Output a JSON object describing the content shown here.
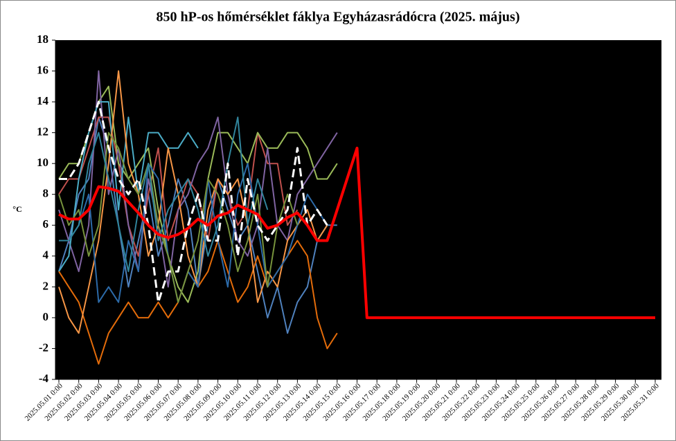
{
  "chart_data": {
    "type": "line",
    "title": "850 hP-os hőmérséklet fáklya Egyházasrádócra (2025. május)",
    "y_label": "°C",
    "categories": [
      "2025.05.01 0:00",
      null,
      "2025.05.02 0:00",
      null,
      "2025.05.03 0:00",
      null,
      "2025.05.04 0:00",
      null,
      "2025.05.05 0:00",
      null,
      "2025.05.06 0:00",
      null,
      "2025.05.07 0:00",
      null,
      "2025.05.08 0:00",
      null,
      "2025.05.09 0:00",
      null,
      "2025.05.10 0:00",
      null,
      "2025.05.11 0:00",
      null,
      "2025.05.12 0:00",
      null,
      "2025.05.13 0:00",
      null,
      "2025.05.14 0:00",
      null,
      "2025.05.15 0:00",
      null,
      "2025.05.16 0:00",
      null,
      "2025.05.17 0:00",
      null,
      "2025.05.18 0:00",
      null,
      "2025.05.19 0:00",
      null,
      "2025.05.20 0:00",
      null,
      "2025.05.21 0:00",
      null,
      "2025.05.22 0:00",
      null,
      "2025.05.23 0:00",
      null,
      "2025.05.24 0:00",
      null,
      "2025.05.25 0:00",
      null,
      "2025.05.26 0:00",
      null,
      "2025.05.27 0:00",
      null,
      "2025.05.28 0:00",
      null,
      "2025.05.29 0:00",
      null,
      "2025.05.30 0:00",
      null,
      "2025.05.31 0:00"
    ],
    "ylim": [
      -4,
      18
    ],
    "yticks": [
      -4,
      -2,
      0,
      2,
      4,
      6,
      8,
      10,
      12,
      14,
      16,
      18
    ],
    "background": "#000000",
    "series": [
      {
        "color": "#4f81bd",
        "width": 2,
        "values": [
          3,
          5,
          8,
          9,
          13,
          11,
          6,
          2,
          5,
          8,
          4,
          6,
          9,
          7,
          2,
          6,
          9,
          7,
          5,
          6,
          3,
          0,
          2,
          -1,
          1,
          2,
          5,
          6,
          6,
          null,
          null,
          null,
          null,
          null,
          null,
          null,
          null,
          null,
          null,
          null,
          null,
          null,
          null,
          null,
          null,
          null,
          null,
          null,
          null,
          null,
          null,
          null,
          null,
          null,
          null,
          null,
          null,
          null,
          null,
          null,
          null
        ]
      },
      {
        "color": "#c0504d",
        "width": 2,
        "values": [
          8,
          9,
          9,
          11,
          13,
          13,
          10,
          6,
          4,
          8,
          11,
          5,
          7,
          9,
          8,
          5,
          9,
          8,
          6,
          7,
          12,
          10,
          10,
          6,
          7,
          null,
          null,
          null,
          null,
          null,
          null,
          null,
          null,
          null,
          null,
          null,
          null,
          null,
          null,
          null,
          null,
          null,
          null,
          null,
          null,
          null,
          null,
          null,
          null,
          null,
          null,
          null,
          null,
          null,
          null,
          null,
          null,
          null,
          null,
          null,
          null
        ]
      },
      {
        "color": "#9bbb59",
        "width": 2,
        "values": [
          9,
          10,
          10,
          12,
          14,
          15,
          10,
          9,
          10,
          11,
          7,
          4,
          2,
          1,
          3,
          9,
          12,
          12,
          11,
          10,
          12,
          11,
          11,
          12,
          12,
          11,
          9,
          9,
          10,
          null,
          null,
          null,
          null,
          null,
          null,
          null,
          null,
          null,
          null,
          null,
          null,
          null,
          null,
          null,
          null,
          null,
          null,
          null,
          null,
          null,
          null,
          null,
          null,
          null,
          null,
          null,
          null,
          null,
          null,
          null,
          null
        ]
      },
      {
        "color": "#8064a2",
        "width": 2,
        "values": [
          7,
          5,
          3,
          6,
          16,
          8,
          11,
          6,
          3,
          9,
          6,
          2,
          7,
          8,
          10,
          11,
          13,
          8,
          5,
          4,
          6,
          11,
          6,
          5,
          8,
          9,
          10,
          11,
          12,
          null,
          null,
          null,
          null,
          null,
          null,
          null,
          null,
          null,
          null,
          null,
          null,
          null,
          null,
          null,
          null,
          null,
          null,
          null,
          null,
          null,
          null,
          null,
          null,
          null,
          null,
          null,
          null,
          null,
          null,
          null,
          null
        ]
      },
      {
        "color": "#4bacc6",
        "width": 2,
        "values": [
          3,
          4,
          9,
          12,
          14,
          14,
          7,
          13,
          8,
          12,
          12,
          11,
          11,
          12,
          11,
          null,
          null,
          null,
          null,
          null,
          null,
          null,
          null,
          null,
          null,
          null,
          null,
          null,
          null,
          null,
          null,
          null,
          null,
          null,
          null,
          null,
          null,
          null,
          null,
          null,
          null,
          null,
          null,
          null,
          null,
          null,
          null,
          null,
          null,
          null,
          null,
          null,
          null,
          null,
          null,
          null,
          null,
          null,
          null,
          null,
          null
        ]
      },
      {
        "color": "#e46c0a",
        "width": 2,
        "values": [
          3,
          2,
          1,
          -1,
          -3,
          -1,
          0,
          1,
          0,
          0,
          1,
          0,
          1,
          3,
          2,
          3,
          5,
          3,
          1,
          2,
          4,
          2,
          3,
          4,
          5,
          4,
          0,
          -2,
          -1,
          null,
          null,
          null,
          null,
          null,
          null,
          null,
          null,
          null,
          null,
          null,
          null,
          null,
          null,
          null,
          null,
          null,
          null,
          null,
          null,
          null,
          null,
          null,
          null,
          null,
          null,
          null,
          null,
          null,
          null,
          null,
          null
        ]
      },
      {
        "color": "#f79646",
        "width": 2,
        "values": [
          2,
          0,
          -1,
          2,
          5,
          10,
          16,
          10,
          8,
          4,
          6,
          11,
          8,
          4,
          2,
          7,
          9,
          8,
          9,
          6,
          1,
          3,
          2,
          5,
          6,
          7,
          5,
          6,
          null,
          null,
          null,
          null,
          null,
          null,
          null,
          null,
          null,
          null,
          null,
          null,
          null,
          null,
          null,
          null,
          null,
          null,
          null,
          null,
          null,
          null,
          null,
          null,
          null,
          null,
          null,
          null,
          null,
          null,
          null,
          null,
          null
        ]
      },
      {
        "color": "#2c6aa8",
        "width": 2,
        "values": [
          5,
          5,
          6,
          8,
          1,
          2,
          1,
          5,
          3,
          10,
          9,
          4,
          1,
          3,
          2,
          9,
          5,
          2,
          8,
          10,
          6,
          2,
          3,
          4,
          6,
          8,
          7,
          6,
          null,
          null,
          null,
          null,
          null,
          null,
          null,
          null,
          null,
          null,
          null,
          null,
          null,
          null,
          null,
          null,
          null,
          null,
          null,
          null,
          null,
          null,
          null,
          null,
          null,
          null,
          null,
          null,
          null,
          null,
          null,
          null,
          null
        ]
      },
      {
        "color": "#77933c",
        "width": 2,
        "values": [
          8,
          6,
          7,
          4,
          6,
          12,
          11,
          9,
          8,
          10,
          6,
          4,
          1,
          3,
          5,
          9,
          8,
          6,
          3,
          5,
          8,
          2,
          6,
          8,
          6,
          null,
          null,
          null,
          null,
          null,
          null,
          null,
          null,
          null,
          null,
          null,
          null,
          null,
          null,
          null,
          null,
          null,
          null,
          null,
          null,
          null,
          null,
          null,
          null,
          null,
          null,
          null,
          null,
          null,
          null,
          null,
          null,
          null,
          null,
          null,
          null
        ]
      },
      {
        "color": "#31859c",
        "width": 2,
        "values": [
          5,
          5,
          6,
          10,
          12,
          9,
          6,
          3,
          7,
          10,
          5,
          7,
          8,
          9,
          7,
          4,
          6,
          10,
          13,
          6,
          9,
          7,
          null,
          null,
          null,
          null,
          null,
          null,
          null,
          null,
          null,
          null,
          null,
          null,
          null,
          null,
          null,
          null,
          null,
          null,
          null,
          null,
          null,
          null,
          null,
          null,
          null,
          null,
          null,
          null,
          null,
          null,
          null,
          null,
          null,
          null,
          null,
          null,
          null,
          null,
          null
        ]
      },
      {
        "color": "#ffffff",
        "width": 3,
        "dashed": true,
        "values": [
          9,
          9,
          10,
          12,
          14,
          11,
          9,
          8,
          9,
          6,
          1,
          3,
          3,
          6,
          8,
          5,
          5,
          10,
          4,
          9,
          6,
          5,
          6,
          7,
          11,
          6,
          7,
          6,
          null,
          null,
          null,
          null,
          null,
          null,
          null,
          null,
          null,
          null,
          null,
          null,
          null,
          null,
          null,
          null,
          null,
          null,
          null,
          null,
          null,
          null,
          null,
          null,
          null,
          null,
          null,
          null,
          null,
          null,
          null,
          null,
          null
        ]
      },
      {
        "color": "#ff0000",
        "width": 4,
        "values": [
          6.7,
          6.4,
          6.4,
          7,
          8.5,
          8.4,
          8.2,
          7.5,
          6.8,
          6,
          5.4,
          5.2,
          5.4,
          5.8,
          6.4,
          6,
          6.6,
          6.8,
          7.3,
          7,
          6.7,
          5.8,
          6,
          6.5,
          6.8,
          6,
          5,
          5,
          7,
          9,
          11,
          0,
          0,
          0,
          0,
          0,
          0,
          0,
          0,
          0,
          0,
          0,
          0,
          0,
          0,
          0,
          0,
          0,
          0,
          0,
          0,
          0,
          0,
          0,
          0,
          0,
          0,
          0,
          0,
          0,
          0
        ]
      }
    ]
  }
}
